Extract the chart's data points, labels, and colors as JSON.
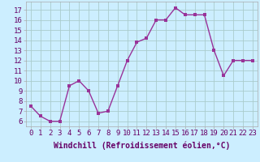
{
  "x": [
    0,
    1,
    2,
    3,
    4,
    5,
    6,
    7,
    8,
    9,
    10,
    11,
    12,
    13,
    14,
    15,
    16,
    17,
    18,
    19,
    20,
    21,
    22,
    23
  ],
  "y": [
    7.5,
    6.5,
    6.0,
    6.0,
    9.5,
    10.0,
    9.0,
    6.8,
    7.0,
    9.5,
    12.0,
    13.8,
    14.2,
    16.0,
    16.0,
    17.2,
    16.5,
    16.5,
    16.5,
    13.0,
    10.5,
    12.0,
    12.0,
    12.0
  ],
  "line_color": "#993399",
  "marker_color": "#993399",
  "bg_color": "#cceeff",
  "grid_color": "#aacccc",
  "xlabel": "Windchill (Refroidissement éolien,°C)",
  "ylabel_ticks": [
    6,
    7,
    8,
    9,
    10,
    11,
    12,
    13,
    14,
    15,
    16,
    17
  ],
  "ylim": [
    5.5,
    17.8
  ],
  "xlim": [
    -0.5,
    23.5
  ],
  "xlabel_fontsize": 7,
  "tick_fontsize": 6.5,
  "marker_size": 2.5,
  "line_width": 1.0
}
